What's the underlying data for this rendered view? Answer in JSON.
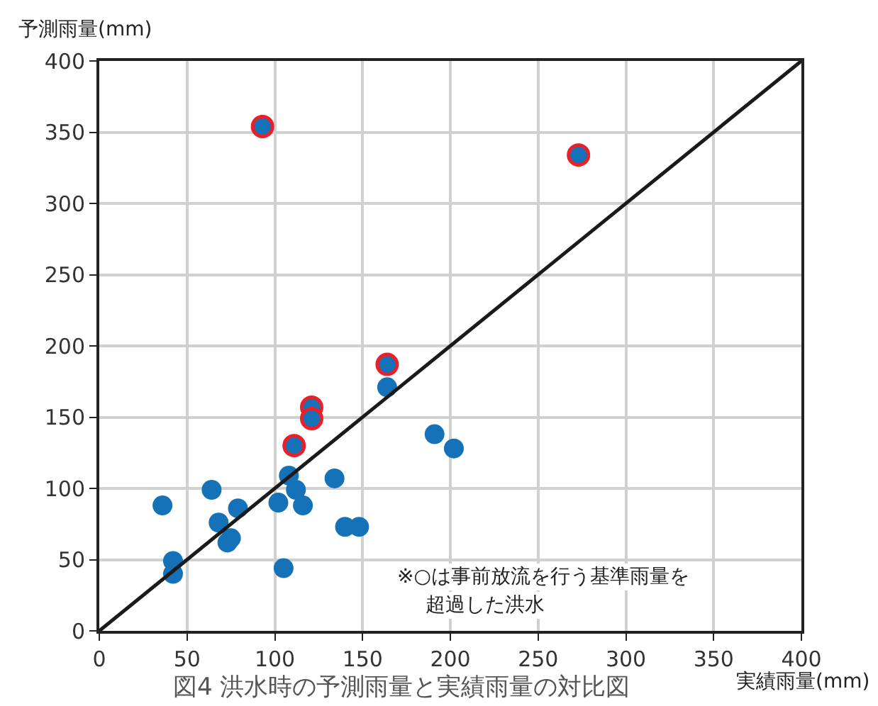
{
  "chart_data": {
    "type": "scatter",
    "title": "図4 洪水時の予測雨量と実績雨量の対比図",
    "xlabel": "実績雨量(mm)",
    "ylabel": "予測雨量(mm)",
    "xlim": [
      0,
      400
    ],
    "ylim": [
      0,
      400
    ],
    "xticks": [
      0,
      50,
      100,
      150,
      200,
      250,
      300,
      350,
      400
    ],
    "yticks": [
      0,
      50,
      100,
      150,
      200,
      250,
      300,
      350,
      400
    ],
    "grid": true,
    "series": [
      {
        "color": "#1672b8",
        "marker": "circle",
        "x": [
          36,
          42,
          42,
          64,
          68,
          79,
          73,
          75,
          102,
          105,
          108,
          112,
          116,
          134,
          140,
          148,
          164,
          191,
          202
        ],
        "values": [
          88,
          49,
          40,
          99,
          76,
          86,
          62,
          65,
          90,
          44,
          109,
          99,
          88,
          107,
          73,
          73,
          171,
          138,
          128
        ]
      },
      {
        "color": "#e8202a",
        "marker": "circle",
        "x": [
          111,
          121,
          121,
          164,
          93,
          273
        ],
        "values": [
          130,
          157,
          149,
          187,
          354,
          334
        ]
      },
      {
        "type": "line",
        "color": "#1a1a1a",
        "marker": "none",
        "x": [
          0,
          400
        ],
        "values": [
          0,
          400
        ]
      }
    ],
    "annotations": [
      "※○は事前放流を行う基準雨量を",
      "超過した洪水"
    ]
  }
}
